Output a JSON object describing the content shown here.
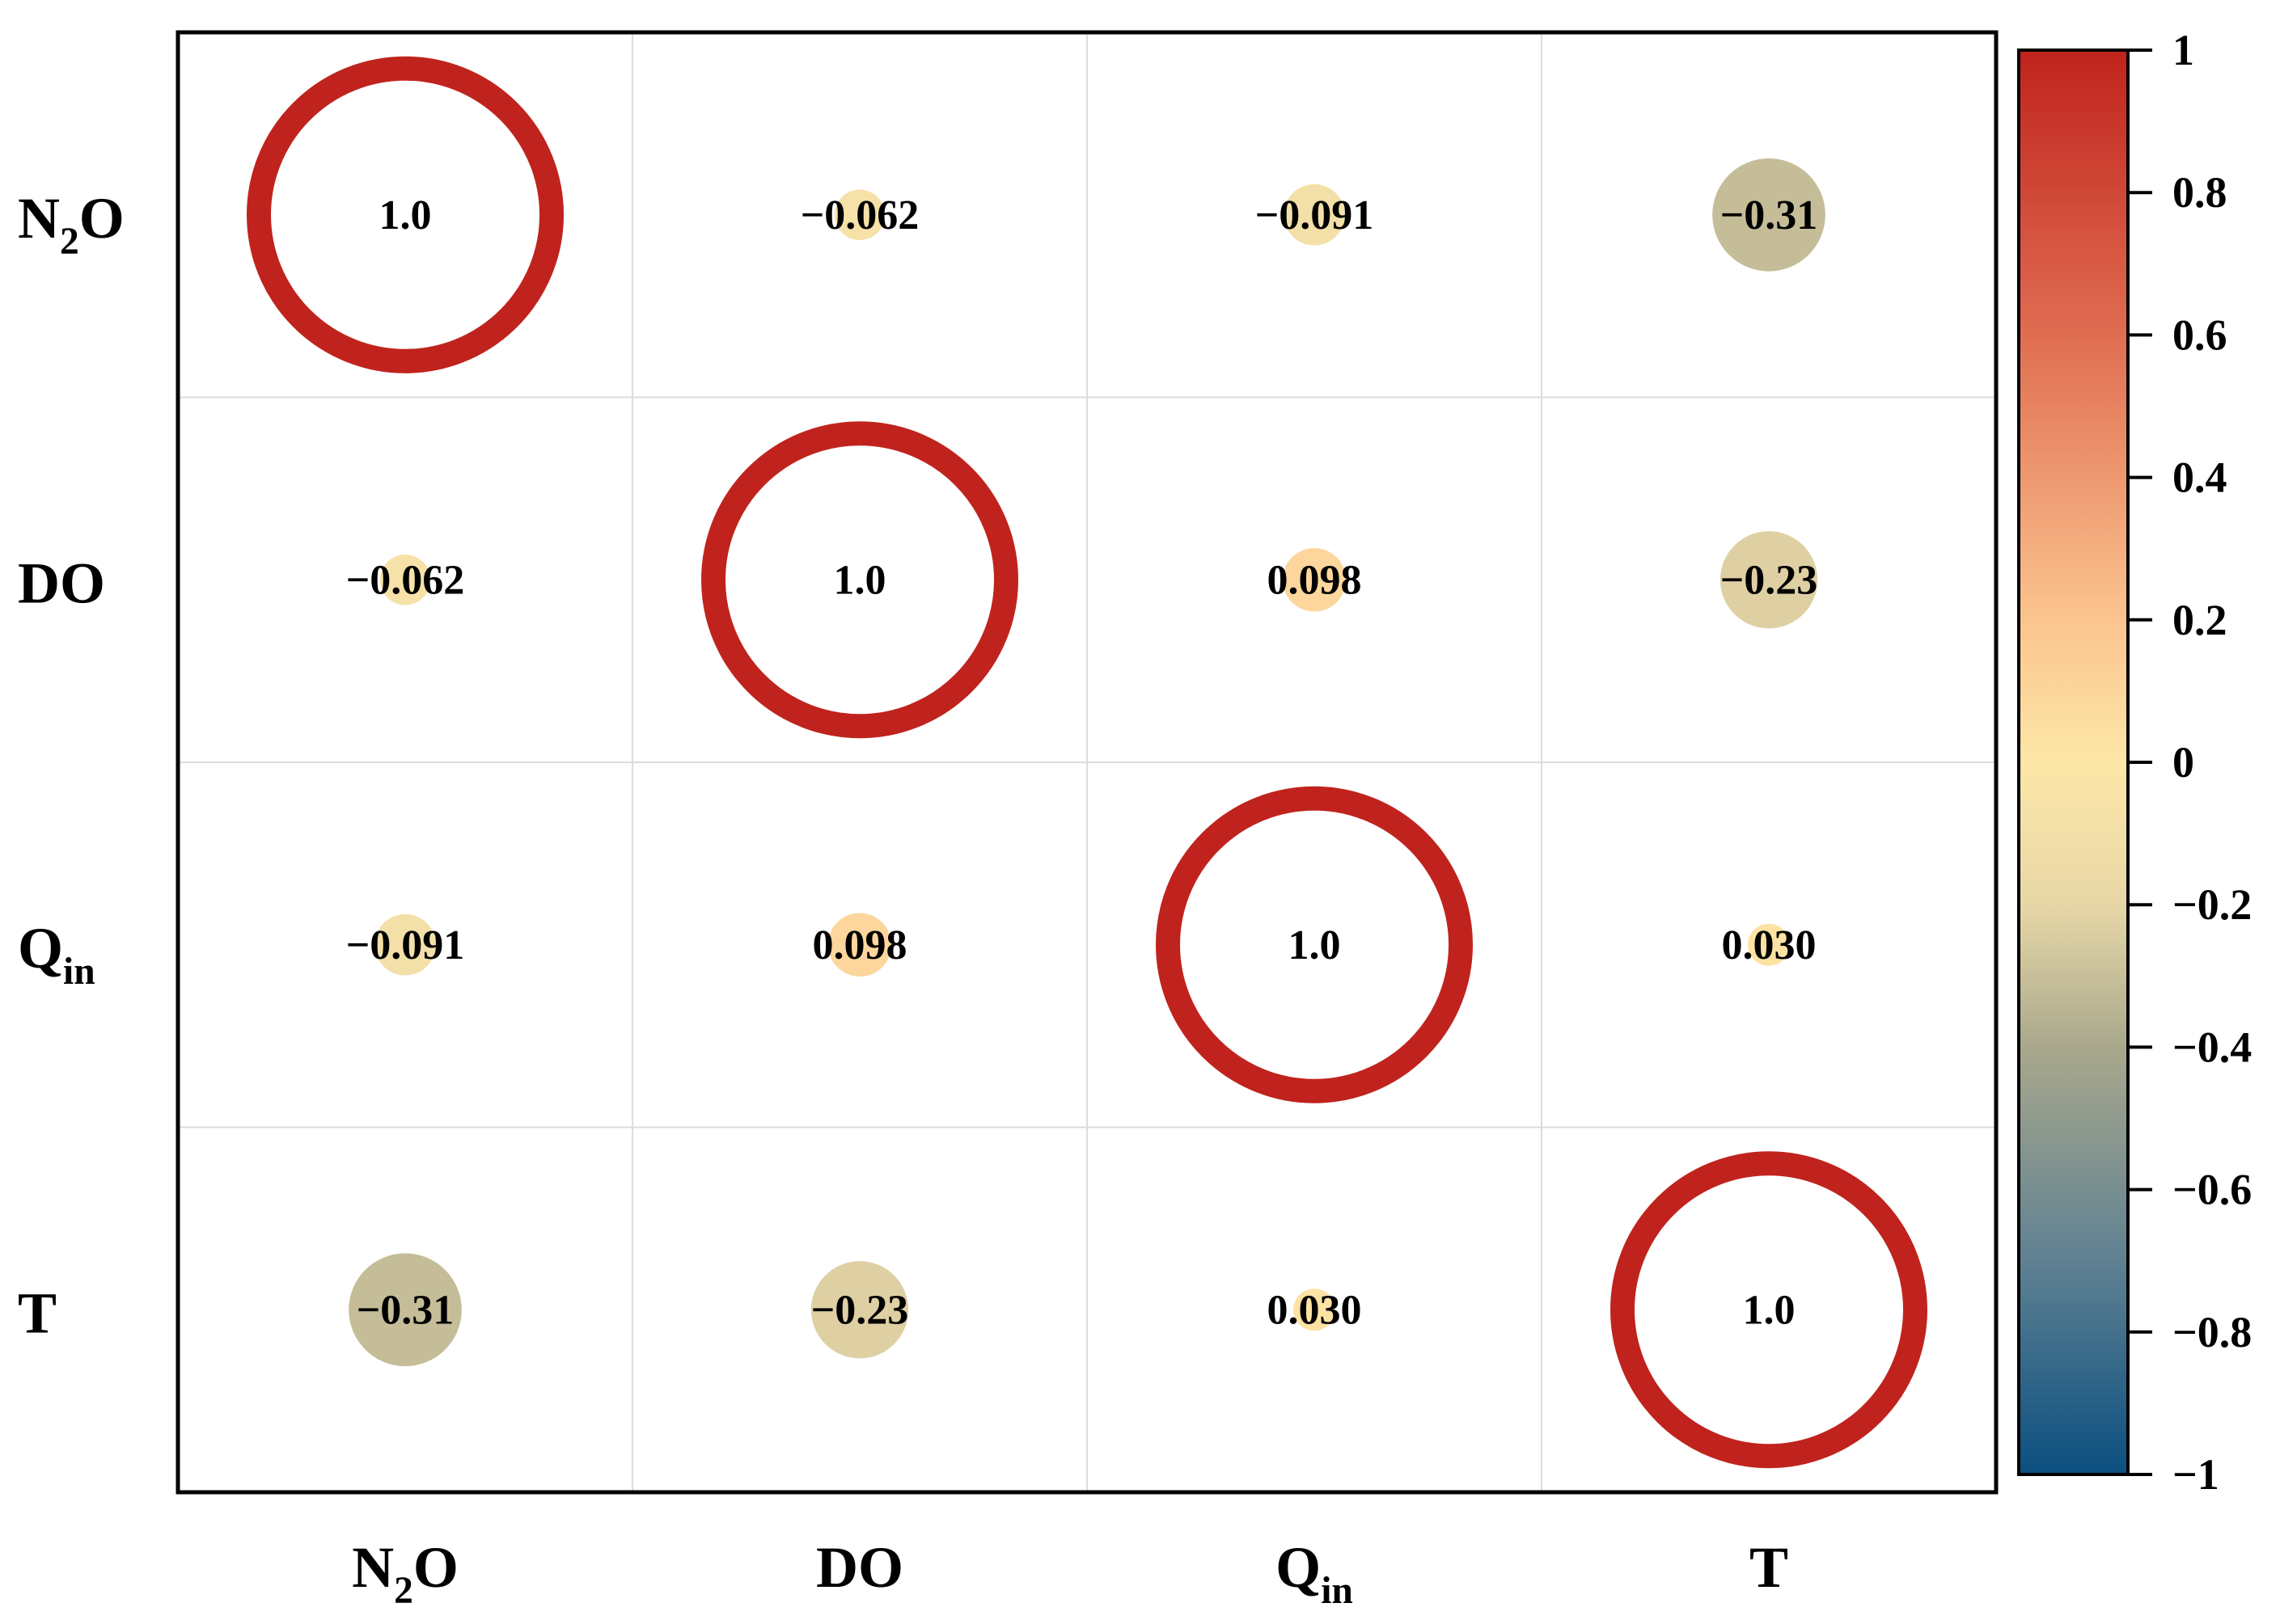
{
  "chart_data": {
    "type": "heatmap",
    "subtype": "correlation-matrix",
    "variables": [
      {
        "id": "N2O",
        "base": "N",
        "sub": "2",
        "tail": "O"
      },
      {
        "id": "DO",
        "base": "DO",
        "sub": "",
        "tail": ""
      },
      {
        "id": "Qin",
        "base": "Q",
        "sub": "in",
        "tail": ""
      },
      {
        "id": "T",
        "base": "T",
        "sub": "",
        "tail": ""
      }
    ],
    "matrix": [
      [
        1.0,
        -0.062,
        -0.091,
        -0.31
      ],
      [
        -0.062,
        1.0,
        0.098,
        -0.23
      ],
      [
        -0.091,
        0.098,
        1.0,
        0.03
      ],
      [
        -0.31,
        -0.23,
        0.03,
        1.0
      ]
    ],
    "labels": [
      [
        "1.0",
        "−0.062",
        "−0.091",
        "−0.31"
      ],
      [
        "−0.062",
        "1.0",
        "0.098",
        "−0.23"
      ],
      [
        "−0.091",
        "0.098",
        "1.0",
        "0.030"
      ],
      [
        "−0.31",
        "−0.23",
        "0.030",
        "1.0"
      ]
    ],
    "colorbar": {
      "range": [
        -1,
        1
      ],
      "ticks": [
        1,
        0.8,
        0.6,
        0.4,
        0.2,
        0,
        -0.2,
        -0.4,
        -0.6,
        -0.8,
        -1
      ],
      "tick_labels": [
        "1",
        "0.8",
        "0.6",
        "0.4",
        "0.2",
        "0",
        "−0.2",
        "−0.4",
        "−0.6",
        "−0.8",
        "−1"
      ],
      "stops": [
        {
          "value": 1,
          "color": "#c0231d"
        },
        {
          "value": 0.6,
          "color": "#e06d52"
        },
        {
          "value": 0.2,
          "color": "#fbc48f"
        },
        {
          "value": 0,
          "color": "#fde7a8"
        },
        {
          "value": -0.2,
          "color": "#e7d7a7"
        },
        {
          "value": -0.4,
          "color": "#a9a88c"
        },
        {
          "value": -0.7,
          "color": "#5f8192"
        },
        {
          "value": -1,
          "color": "#0b4f80"
        }
      ]
    },
    "diagonal_style": "ring",
    "diagonal_color": "#c0231d",
    "grid": true,
    "legend": "right"
  }
}
